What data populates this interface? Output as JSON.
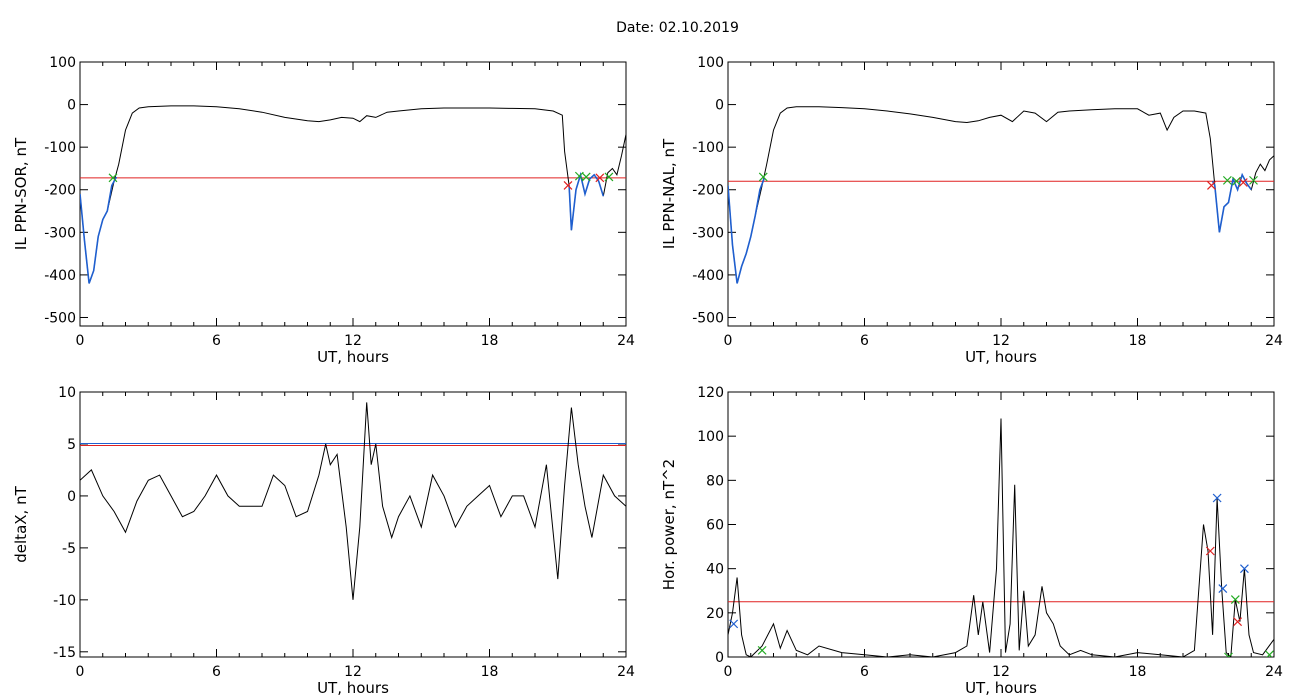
{
  "figure": {
    "date_label": "Date:  02.10.2019"
  },
  "chart_data": [
    {
      "type": "line",
      "ylabel": "IL PPN-SOR, nT",
      "xlabel": "UT, hours",
      "xlim": [
        0,
        24
      ],
      "ylim": [
        -520,
        100
      ],
      "xticks": [
        0,
        6,
        12,
        18,
        24
      ],
      "yticks": [
        100,
        0,
        -100,
        -200,
        -300,
        -400,
        -500
      ],
      "series": [
        {
          "color": "#000000",
          "x": [
            0,
            0.2,
            0.4,
            0.6,
            0.8,
            1.0,
            1.2,
            1.5,
            1.7,
            2.0,
            2.3,
            2.6,
            3.0,
            4.0,
            5.0,
            6.0,
            7.0,
            8.0,
            9.0,
            10.0,
            10.5,
            11.0,
            11.5,
            12.0,
            12.3,
            12.6,
            13.0,
            13.5,
            14.0,
            15.0,
            16.0,
            17.0,
            18.0,
            19.0,
            20.0,
            20.8,
            21.2,
            21.3,
            21.5,
            21.6,
            21.8,
            22.0,
            22.2,
            22.4,
            22.6,
            22.8,
            23.0,
            23.2,
            23.4,
            23.6,
            23.8,
            24.0
          ],
          "y": [
            -210,
            -320,
            -420,
            -390,
            -310,
            -270,
            -250,
            -180,
            -140,
            -60,
            -20,
            -8,
            -5,
            -3,
            -3,
            -5,
            -10,
            -18,
            -30,
            -38,
            -40,
            -36,
            -30,
            -32,
            -40,
            -26,
            -30,
            -18,
            -15,
            -10,
            -8,
            -8,
            -8,
            -9,
            -10,
            -15,
            -25,
            -110,
            -190,
            -295,
            -200,
            -165,
            -210,
            -175,
            -165,
            -180,
            -215,
            -160,
            -150,
            -165,
            -120,
            -70
          ]
        },
        {
          "color": "#1f5fcf",
          "x": [
            0,
            0.2,
            0.4,
            0.6,
            0.8,
            1.0,
            1.2,
            1.4,
            1.6
          ],
          "y": [
            -210,
            -320,
            -420,
            -390,
            -310,
            -270,
            -250,
            -190,
            -170
          ]
        },
        {
          "color": "#1f5fcf",
          "x": [
            21.5,
            21.6,
            21.8,
            22.0,
            22.2,
            22.4,
            22.6,
            22.8,
            23.0
          ],
          "y": [
            -190,
            -295,
            -200,
            -165,
            -210,
            -175,
            -165,
            -180,
            -215
          ]
        }
      ],
      "threshold": {
        "value": -172,
        "color": "#e02020"
      },
      "markers": [
        {
          "x": 1.45,
          "y": -172,
          "color": "#22aa22"
        },
        {
          "x": 21.45,
          "y": -190,
          "color": "#e02020"
        },
        {
          "x": 21.95,
          "y": -168,
          "color": "#22aa22"
        },
        {
          "x": 22.25,
          "y": -170,
          "color": "#22aa22"
        },
        {
          "x": 22.85,
          "y": -172,
          "color": "#e02020"
        },
        {
          "x": 23.25,
          "y": -170,
          "color": "#22aa22"
        }
      ]
    },
    {
      "type": "line",
      "ylabel": "IL PPN-NAL, nT",
      "xlabel": "UT, hours",
      "xlim": [
        0,
        24
      ],
      "ylim": [
        -520,
        100
      ],
      "xticks": [
        0,
        6,
        12,
        18,
        24
      ],
      "yticks": [
        100,
        0,
        -100,
        -200,
        -300,
        -400,
        -500
      ],
      "series": [
        {
          "color": "#000000",
          "x": [
            0,
            0.2,
            0.4,
            0.6,
            0.8,
            1.0,
            1.2,
            1.5,
            1.7,
            2.0,
            2.3,
            2.6,
            3.0,
            4.0,
            5.0,
            6.0,
            7.0,
            8.0,
            9.0,
            10.0,
            10.5,
            11.0,
            11.5,
            12.0,
            12.5,
            13.0,
            13.5,
            14.0,
            14.5,
            15.0,
            16.0,
            17.0,
            18.0,
            18.5,
            19.0,
            19.3,
            19.6,
            20.0,
            20.5,
            21.0,
            21.2,
            21.4,
            21.6,
            21.8,
            22.0,
            22.2,
            22.4,
            22.6,
            22.8,
            23.0,
            23.2,
            23.4,
            23.6,
            23.8,
            24.0
          ],
          "y": [
            -190,
            -330,
            -420,
            -380,
            -350,
            -310,
            -260,
            -190,
            -140,
            -60,
            -20,
            -8,
            -5,
            -5,
            -7,
            -10,
            -15,
            -22,
            -30,
            -40,
            -42,
            -38,
            -30,
            -25,
            -40,
            -15,
            -20,
            -40,
            -18,
            -15,
            -12,
            -10,
            -10,
            -25,
            -20,
            -60,
            -30,
            -15,
            -15,
            -20,
            -80,
            -190,
            -300,
            -240,
            -230,
            -175,
            -200,
            -165,
            -185,
            -200,
            -160,
            -140,
            -155,
            -130,
            -120
          ]
        },
        {
          "color": "#1f5fcf",
          "x": [
            0,
            0.2,
            0.4,
            0.6,
            0.8,
            1.0,
            1.2,
            1.4,
            1.6
          ],
          "y": [
            -190,
            -330,
            -420,
            -380,
            -350,
            -310,
            -260,
            -200,
            -172
          ]
        },
        {
          "color": "#1f5fcf",
          "x": [
            21.3,
            21.4,
            21.6,
            21.8,
            22.0,
            22.2,
            22.4,
            22.6,
            22.8,
            23.0
          ],
          "y": [
            -180,
            -190,
            -300,
            -240,
            -230,
            -175,
            -200,
            -165,
            -185,
            -200
          ]
        }
      ],
      "threshold": {
        "value": -180,
        "color": "#e02020"
      },
      "markers": [
        {
          "x": 1.55,
          "y": -170,
          "color": "#22aa22"
        },
        {
          "x": 21.25,
          "y": -190,
          "color": "#e02020"
        },
        {
          "x": 21.95,
          "y": -178,
          "color": "#22aa22"
        },
        {
          "x": 22.35,
          "y": -180,
          "color": "#22aa22"
        },
        {
          "x": 22.65,
          "y": -183,
          "color": "#e02020"
        },
        {
          "x": 23.1,
          "y": -178,
          "color": "#22aa22"
        }
      ]
    },
    {
      "type": "line",
      "ylabel": "deltaX, nT",
      "xlabel": "UT, hours",
      "xlim": [
        0,
        24
      ],
      "ylim": [
        -15.5,
        10
      ],
      "xticks": [
        0,
        6,
        12,
        18,
        24
      ],
      "yticks": [
        10,
        5,
        0,
        -5,
        -10,
        -15
      ],
      "series": [
        {
          "color": "#000000",
          "x": [
            0,
            0.5,
            1.0,
            1.5,
            2.0,
            2.5,
            3.0,
            3.5,
            4.0,
            4.5,
            5.0,
            5.5,
            6.0,
            6.5,
            7.0,
            7.5,
            8.0,
            8.5,
            9.0,
            9.5,
            10.0,
            10.5,
            10.8,
            11.0,
            11.3,
            11.7,
            12.0,
            12.3,
            12.6,
            12.8,
            13.0,
            13.3,
            13.7,
            14.0,
            14.5,
            15.0,
            15.5,
            16.0,
            16.5,
            17.0,
            17.5,
            18.0,
            18.5,
            19.0,
            19.5,
            20.0,
            20.5,
            21.0,
            21.3,
            21.6,
            21.9,
            22.2,
            22.5,
            23.0,
            23.5,
            24.0
          ],
          "y": [
            1.5,
            2.5,
            0,
            -1.5,
            -3.5,
            -0.5,
            1.5,
            2,
            0,
            -2,
            -1.5,
            0,
            2,
            0,
            -1,
            -1,
            -1,
            2,
            1,
            -2,
            -1.5,
            2,
            5,
            3,
            4,
            -3,
            -10,
            -3,
            9,
            3,
            5,
            -1,
            -4,
            -2,
            0,
            -3,
            2,
            0,
            -3,
            -1,
            0,
            1,
            -2,
            0,
            0,
            -3,
            3,
            -8,
            1,
            8.5,
            3,
            -1,
            -4,
            2,
            0,
            -1
          ]
        }
      ],
      "thresholds": [
        {
          "value": 4.85,
          "color": "#e02020"
        },
        {
          "value": 5.05,
          "color": "#1f5fcf"
        }
      ]
    },
    {
      "type": "line",
      "ylabel": "Hor. power, nT^2",
      "xlabel": "UT, hours",
      "xlim": [
        0,
        24
      ],
      "ylim": [
        0,
        120
      ],
      "xticks": [
        0,
        6,
        12,
        18,
        24
      ],
      "yticks": [
        0,
        20,
        40,
        60,
        80,
        100,
        120
      ],
      "series": [
        {
          "color": "#000000",
          "x": [
            0,
            0.2,
            0.4,
            0.6,
            0.8,
            1.0,
            1.5,
            2.0,
            2.3,
            2.6,
            3.0,
            3.5,
            4.0,
            5.0,
            6.0,
            7.0,
            8.0,
            9.0,
            10.0,
            10.5,
            10.8,
            11.0,
            11.2,
            11.5,
            11.8,
            12.0,
            12.2,
            12.4,
            12.6,
            12.8,
            13.0,
            13.2,
            13.5,
            13.8,
            14.0,
            14.3,
            14.6,
            15.0,
            15.5,
            16.0,
            17.0,
            18.0,
            19.0,
            20.0,
            20.5,
            20.9,
            21.1,
            21.3,
            21.5,
            21.7,
            21.9,
            22.1,
            22.3,
            22.5,
            22.7,
            22.9,
            23.1,
            23.5,
            24.0
          ],
          "y": [
            10,
            20,
            36,
            10,
            1,
            0,
            5,
            15,
            4,
            12,
            3,
            1,
            5,
            2,
            1,
            0,
            1,
            0,
            2,
            5,
            28,
            10,
            25,
            2,
            40,
            108,
            2,
            15,
            78,
            3,
            30,
            5,
            10,
            32,
            20,
            15,
            5,
            1,
            3,
            1,
            0,
            2,
            1,
            0,
            3,
            60,
            48,
            10,
            72,
            31,
            2,
            0,
            26,
            16,
            40,
            10,
            2,
            1,
            8
          ]
        }
      ],
      "threshold": {
        "value": 25,
        "color": "#e02020"
      },
      "markers": [
        {
          "x": 0.25,
          "y": 15,
          "color": "#1f5fcf"
        },
        {
          "x": 1.5,
          "y": 3,
          "color": "#22aa22"
        },
        {
          "x": 21.2,
          "y": 48,
          "color": "#e02020"
        },
        {
          "x": 21.5,
          "y": 72,
          "color": "#1f5fcf"
        },
        {
          "x": 21.75,
          "y": 31,
          "color": "#1f5fcf"
        },
        {
          "x": 22.0,
          "y": 0,
          "color": "#22aa22"
        },
        {
          "x": 22.3,
          "y": 26,
          "color": "#22aa22"
        },
        {
          "x": 22.4,
          "y": 16,
          "color": "#e02020"
        },
        {
          "x": 22.7,
          "y": 40,
          "color": "#1f5fcf"
        },
        {
          "x": 23.8,
          "y": 1,
          "color": "#22aa22"
        }
      ]
    }
  ]
}
